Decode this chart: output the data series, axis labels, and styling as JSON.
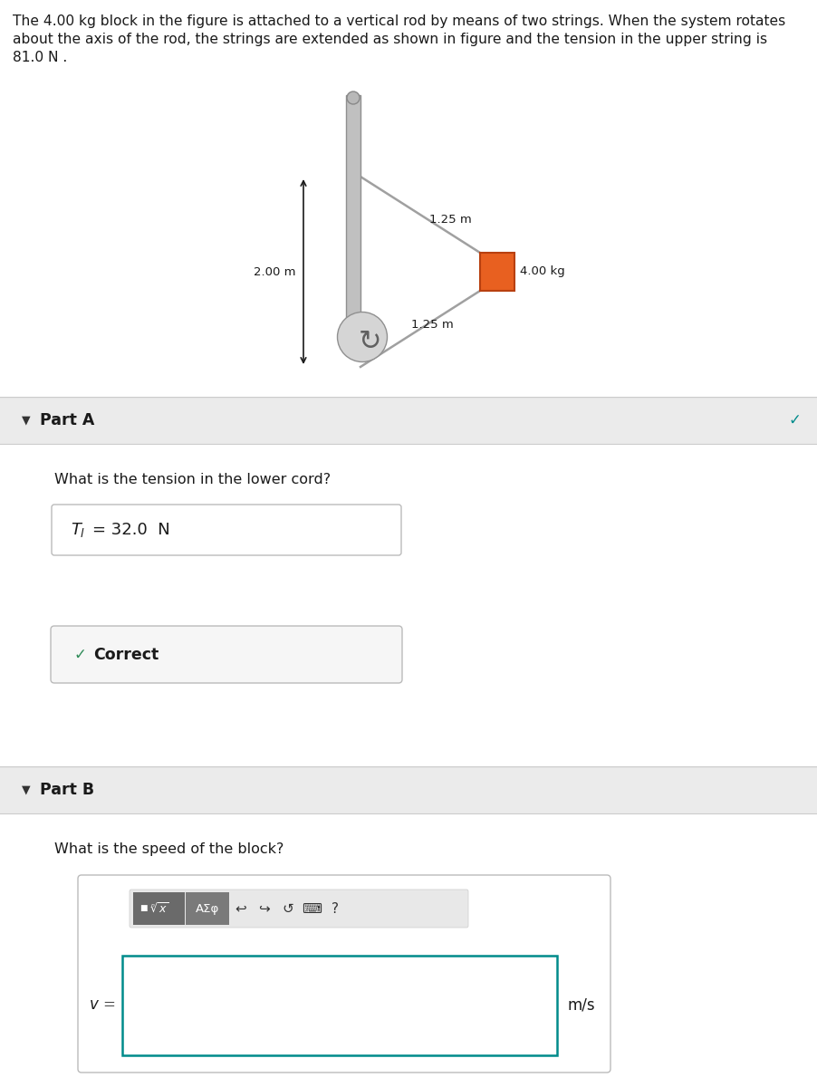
{
  "title_text_line1": "The 4.00 kg block in the figure is attached to a vertical rod by means of two strings. When the system rotates",
  "title_text_line2": "about the axis of the rod, the strings are extended as shown in figure and the tension in the upper string is",
  "title_text_line3": "81.0 N .",
  "top_bg": "#cde8f0",
  "white_bg": "#ffffff",
  "body_bg": "#f2f2f2",
  "header_bg": "#ebebeb",
  "rod_color": "#c0c0c0",
  "rod_edge": "#909090",
  "block_color": "#e86020",
  "block_edge": "#b84010",
  "string_color": "#a0a0a0",
  "base_color": "#d5d5d5",
  "label_2m": "2.00 m",
  "label_125_upper": "1.25 m",
  "label_125_lower": "1.25 m",
  "label_mass": "4.00 kg",
  "part_a_header": "Part A",
  "part_a_question": "What is the tension in the lower cord?",
  "part_a_answer_T": "T",
  "part_a_answer_sub": "l",
  "part_a_answer_rest": " = 32.0  N",
  "correct_text": "Correct",
  "part_b_header": "Part B",
  "part_b_question": "What is the speed of the block?",
  "v_label": "v =",
  "unit_label": "m/s",
  "checkmark_green": "#2e8b57",
  "checkmark_teal": "#008B8B",
  "toolbar_bg": "#888888",
  "btn1_bg": "#6a6a6a",
  "btn2_bg": "#7a7a7a"
}
